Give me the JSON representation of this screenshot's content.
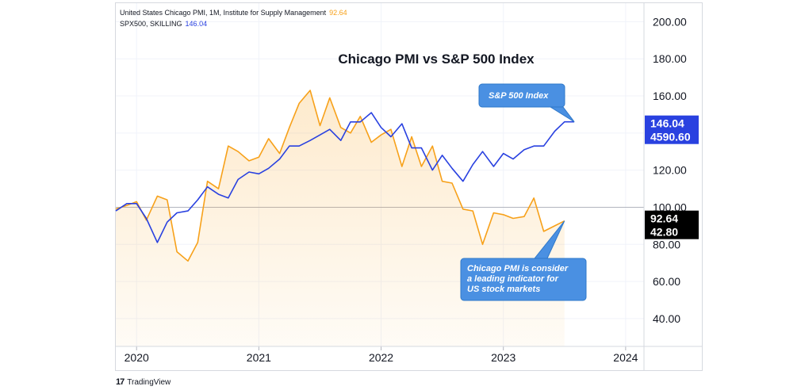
{
  "legend": {
    "pmi_label": "United States Chicago PMI, 1M, Institute for Supply Management",
    "pmi_value": "92.64",
    "spx_label": "SPX500, SKILLING",
    "spx_value": "146.04"
  },
  "branding": {
    "logo": "17",
    "name": "TradingView"
  },
  "colors": {
    "pmi": "#f7a11a",
    "spx": "#2941e0",
    "callout": "#4a90e2",
    "axis_text": "#131722",
    "baseline": "#b2b5be",
    "badge_spx": "#2941e0",
    "badge_pmi": "#000000"
  },
  "chart_data": {
    "type": "line",
    "title": "Chicago PMI vs S&P 500 Index",
    "xlabel": "",
    "ylabel": "",
    "ylim": [
      25,
      210
    ],
    "x_ticks": [
      "2020",
      "2021",
      "2022",
      "2023",
      "2024"
    ],
    "y_ticks": [
      "40.00",
      "60.00",
      "80.00",
      "100.00",
      "120.00",
      "140.00",
      "160.00",
      "180.00",
      "200.00"
    ],
    "baseline": 100,
    "series": [
      {
        "name": "United States Chicago PMI",
        "style": "area",
        "dates": [
          2019.83,
          2019.92,
          2020.0,
          2020.08,
          2020.17,
          2020.25,
          2020.33,
          2020.42,
          2020.5,
          2020.58,
          2020.67,
          2020.75,
          2020.83,
          2020.92,
          2021.0,
          2021.08,
          2021.17,
          2021.25,
          2021.33,
          2021.42,
          2021.5,
          2021.58,
          2021.67,
          2021.75,
          2021.83,
          2021.92,
          2022.0,
          2022.08,
          2022.17,
          2022.25,
          2022.33,
          2022.42,
          2022.5,
          2022.58,
          2022.67,
          2022.75,
          2022.83,
          2022.92,
          2023.0,
          2023.08,
          2023.17,
          2023.25,
          2023.33,
          2023.42,
          2023.5
        ],
        "values": [
          99,
          101,
          103,
          93,
          106,
          104,
          76,
          71,
          81,
          114,
          110,
          133,
          130,
          125,
          127,
          137,
          129,
          143,
          156,
          163,
          144,
          159,
          143,
          140,
          149,
          135,
          139,
          142,
          122,
          138,
          122,
          133,
          114,
          113,
          99,
          98,
          80,
          97,
          96,
          94,
          95,
          105,
          87,
          90,
          92.64
        ]
      },
      {
        "name": "SPX500",
        "style": "line",
        "dates": [
          2019.83,
          2019.92,
          2020.0,
          2020.08,
          2020.17,
          2020.25,
          2020.33,
          2020.42,
          2020.5,
          2020.58,
          2020.67,
          2020.75,
          2020.83,
          2020.92,
          2021.0,
          2021.08,
          2021.17,
          2021.25,
          2021.33,
          2021.42,
          2021.5,
          2021.58,
          2021.67,
          2021.75,
          2021.83,
          2021.92,
          2022.0,
          2022.08,
          2022.17,
          2022.25,
          2022.33,
          2022.42,
          2022.5,
          2022.58,
          2022.67,
          2022.75,
          2022.83,
          2022.92,
          2023.0,
          2023.08,
          2023.17,
          2023.25,
          2023.33,
          2023.42,
          2023.5,
          2023.58
        ],
        "values": [
          98,
          102,
          102,
          94,
          81,
          92,
          97,
          98,
          104,
          111,
          107,
          105,
          115,
          119,
          118,
          121,
          126,
          133,
          133,
          136,
          139,
          142,
          136,
          146,
          146,
          151,
          143,
          138,
          145,
          132,
          132,
          120,
          128,
          121,
          114,
          123,
          130,
          122,
          129,
          126,
          131,
          133,
          133,
          141,
          146.04,
          146.04
        ]
      }
    ],
    "badges": [
      {
        "series": "SPX500",
        "lines": [
          "146.04",
          "4590.60"
        ],
        "value": 146.04
      },
      {
        "series": "Chicago PMI",
        "lines": [
          "92.64",
          "42.80"
        ],
        "value": 92.64
      }
    ],
    "annotations": [
      {
        "text": [
          "S&P 500 Index"
        ],
        "target": [
          2023.58,
          146.04
        ]
      },
      {
        "text": [
          "Chicago PMI is consider",
          "a leading indicator for",
          "US stock markets"
        ],
        "target": [
          2023.5,
          92.64
        ]
      }
    ]
  }
}
